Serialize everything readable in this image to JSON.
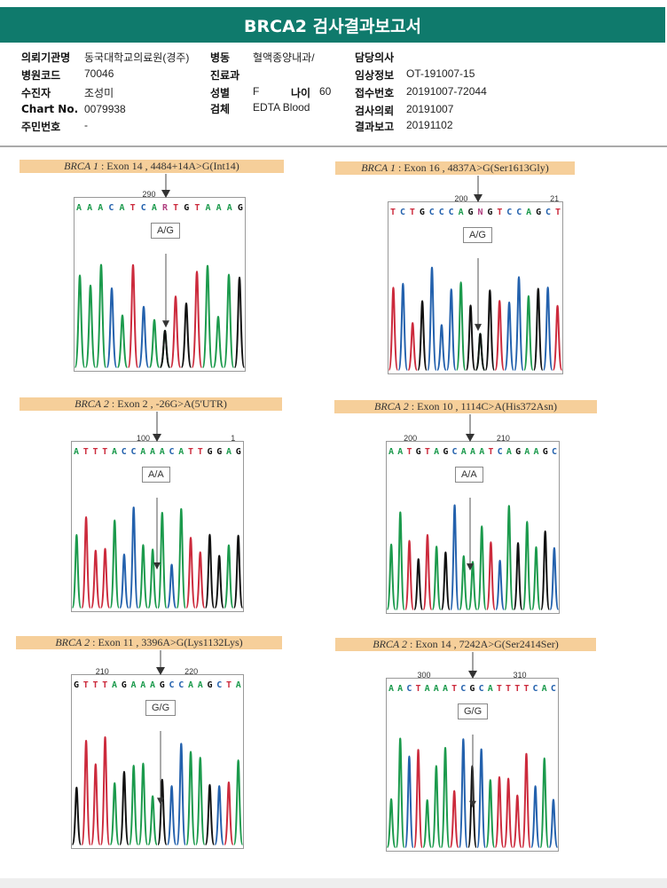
{
  "title": "BRCA2 검사결과보고서",
  "info": {
    "institution_label": "의뢰기관명",
    "institution": "동국대학교의료원(경주)",
    "hospital_code_label": "병원코드",
    "hospital_code": "70046",
    "patient_label": "수진자",
    "patient": "조성미",
    "chart_label": "Chart No.",
    "chart": "0079938",
    "id_label": "주민번호",
    "id": "-",
    "ward_label": "병동",
    "ward": "혈액종양내과/",
    "dept_label": "진료과",
    "sex_label": "성별",
    "sex": "F",
    "age_label": "나이",
    "age": "60",
    "specimen_label": "검체",
    "specimen": "EDTA Blood",
    "doctor_label": "담당의사",
    "clinical_label": "임상정보",
    "clinical": "OT-191007-15",
    "receipt_label": "접수번호",
    "receipt": "20191007-72044",
    "request_label": "검사의뢰",
    "request": "20191007",
    "report_label": "결과보고",
    "report": "20191102"
  },
  "colors": {
    "A": "#1b9a4c",
    "C": "#2361ad",
    "G": "#111111",
    "T": "#cc2a3c",
    "header": "#0f7a6c"
  },
  "panels": [
    {
      "gene": "BRCA 1",
      "desc": ": Exon 14 , 4484+14A>G(Int14)",
      "pos": [
        "290"
      ],
      "seq": "AAACATCARTGTAAAG",
      "genotype": "A/G"
    },
    {
      "gene": "BRCA 1",
      "desc": ": Exon 16 , 4837A>G(Ser1613Gly)",
      "pos": [
        "200",
        "21"
      ],
      "seq": "TCTGCCCAGNGTCCAGCT",
      "genotype": "A/G"
    },
    {
      "gene": "BRCA 2",
      "desc": ": Exon 2 , -26G>A(5'UTR)",
      "pos": [
        "100",
        "1"
      ],
      "seq": "ATTTACCAAACATTGGAG",
      "genotype": "A/A"
    },
    {
      "gene": "BRCA 2",
      "desc": ": Exon 10 , 1114C>A(His372Asn)",
      "pos": [
        "200",
        "210"
      ],
      "seq": "AATGTAGCAAATCAGAAGC",
      "genotype": "A/A"
    },
    {
      "gene": "BRCA 2",
      "desc": ": Exon 11 , 3396A>G(Lys1132Lys)",
      "pos": [
        "210",
        "220"
      ],
      "seq": "GTTTAGAAAGCCAAGCTA",
      "genotype": "G/G"
    },
    {
      "gene": "BRCA 2",
      "desc": ": Exon 14 , 7242A>G(Ser2414Ser)",
      "pos": [
        "300",
        "310"
      ],
      "seq": "AACTAAATCGCATTTTCAC",
      "genotype": "G/G"
    }
  ]
}
